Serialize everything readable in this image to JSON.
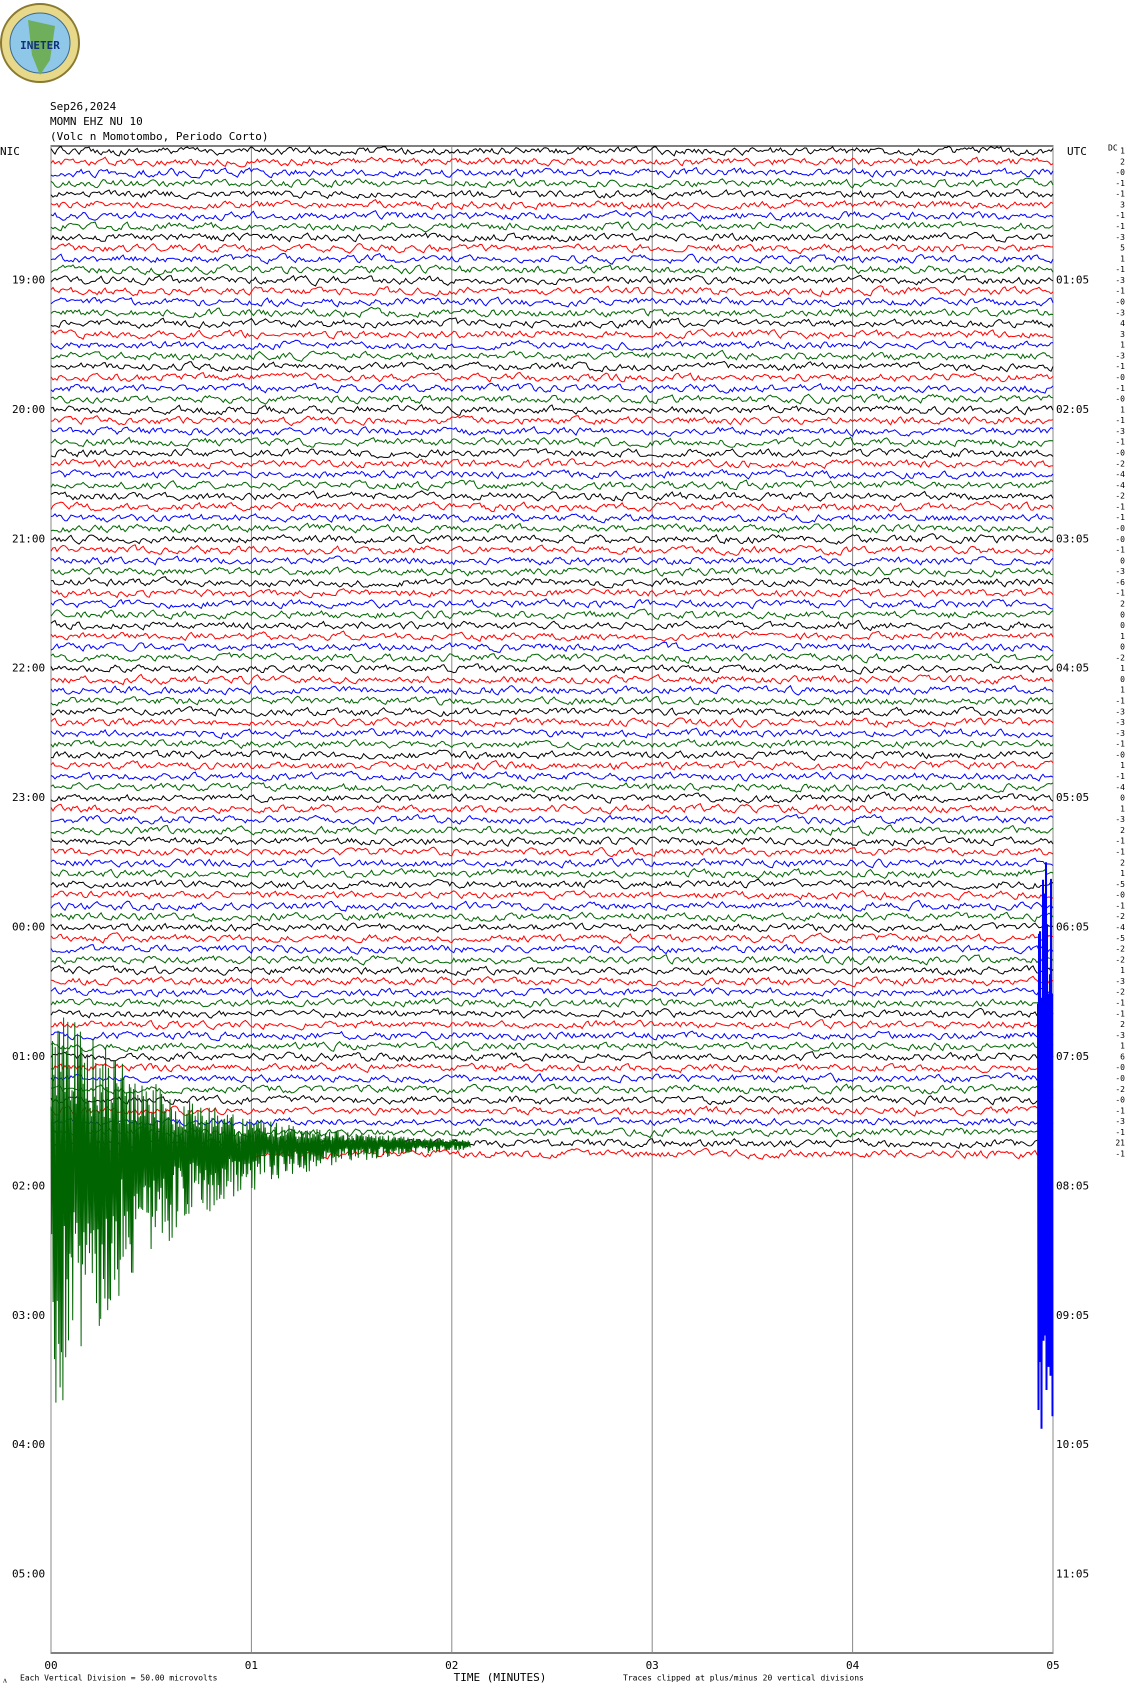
{
  "chart_data": {
    "type": "helicorder",
    "logo_text": "INETER",
    "title": "Sep26,2024",
    "subtitle": "MOMN EHZ NU 10",
    "station": "(Volc n Momotombo, Periodo Corto)",
    "left_label": "NIC",
    "right_label": "UTC",
    "dc_label": "DC",
    "left_times": [
      "19:00",
      "20:00",
      "21:00",
      "22:00",
      "23:00",
      "00:00",
      "01:00",
      "02:00",
      "03:00",
      "04:00",
      "05:00"
    ],
    "right_times": [
      "01:05",
      "02:05",
      "03:05",
      "04:05",
      "05:05",
      "06:05",
      "07:05",
      "08:05",
      "09:05",
      "10:05",
      "11:05"
    ],
    "dc_offsets": [
      "1",
      "2",
      "-0",
      "-1",
      "-1",
      "3",
      "-1",
      "-1",
      "-3",
      "5",
      "1",
      "-1",
      "-3",
      "-1",
      "-0",
      "-3",
      "4",
      "3",
      "1",
      "-3",
      "-1",
      "-0",
      "-1",
      "-0",
      "1",
      "-1",
      "-3",
      "-1",
      "-0",
      "-2",
      "-4",
      "-4",
      "-2",
      "-1",
      "-1",
      "-0",
      "-0",
      "-1",
      "0",
      "-3",
      "-6",
      "-1",
      "2",
      "0",
      "0",
      "1",
      "0",
      "-2",
      "1",
      "0",
      "1",
      "-1",
      "-3",
      "-3",
      "-3",
      "-1",
      "-0",
      "1",
      "-1",
      "-4",
      "0",
      "1",
      "-3",
      "2",
      "-1",
      "-1",
      "2",
      "1",
      "-5",
      "-0",
      "-1",
      "-2",
      "-4",
      "-5",
      "-2",
      "-2",
      "1",
      "-3",
      "-2",
      "-1",
      "-1",
      "2",
      "-3",
      "1",
      "6",
      "-0",
      "-0",
      "-2",
      "-0",
      "-1",
      "-3",
      "-1",
      "21",
      "-1"
    ],
    "colors": [
      "#000000",
      "#ff0000",
      "#0000ff",
      "#006400"
    ],
    "xlabel": "TIME (MINUTES)",
    "xlim": [
      0,
      5
    ],
    "xticks": [
      {
        "value": 0,
        "label": "00"
      },
      {
        "value": 1,
        "label": "01"
      },
      {
        "value": 2,
        "label": "02"
      },
      {
        "value": 3,
        "label": "03"
      },
      {
        "value": 4,
        "label": "04"
      },
      {
        "value": 5,
        "label": "05"
      }
    ],
    "scale_note": "Each Vertical Division =   50.00 microvolts",
    "clip_note": "Traces clipped at plus/minus 20 vertical divisions",
    "grid": true
  }
}
